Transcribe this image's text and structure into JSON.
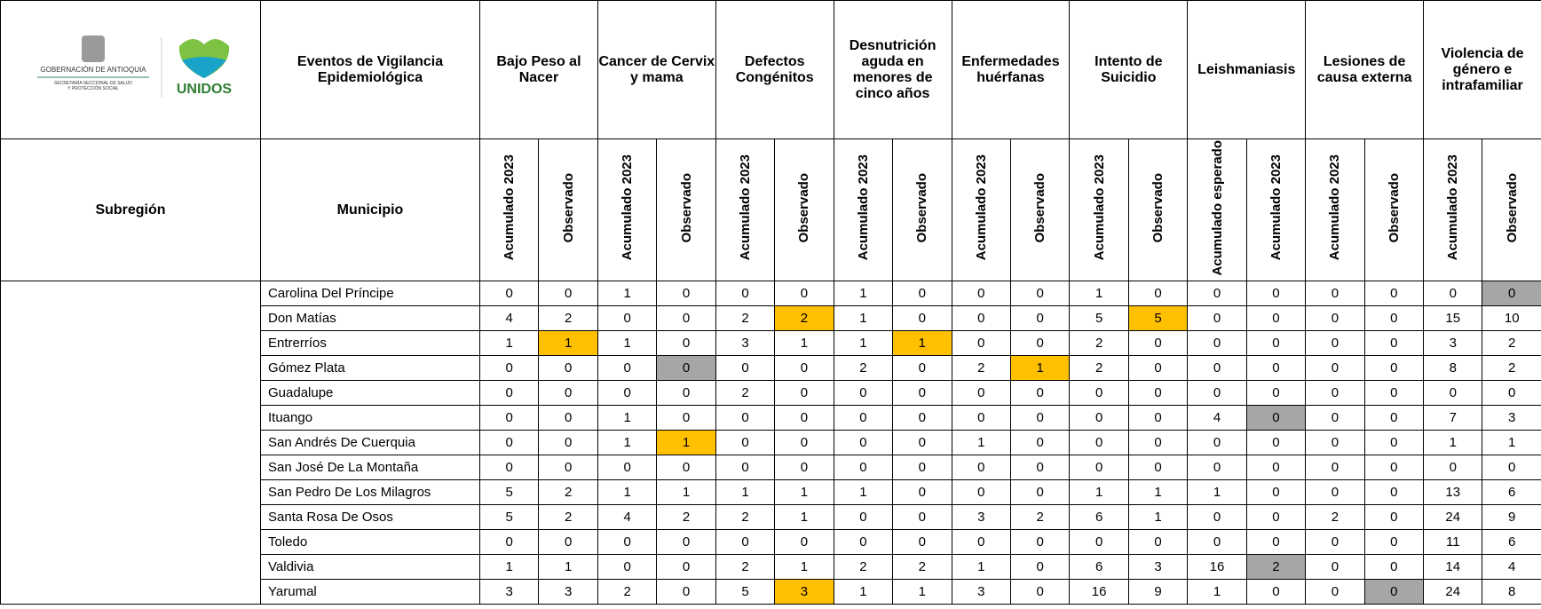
{
  "logo": {
    "line1": "GOBERNACIÓN DE ANTIOQUIA",
    "line2": "SECRETARÍA SECCIONAL DE SALUD",
    "line3": "Y PROTECCIÓN SOCIAL",
    "brand": "UNIDOS"
  },
  "header": {
    "title": "Eventos de Vigilancia Epidemiológica",
    "subregion": "Subregión",
    "municipio": "Municipio"
  },
  "events": [
    {
      "name": "Bajo Peso al Nacer",
      "columns": [
        "Acumulado 2023",
        "Observado"
      ]
    },
    {
      "name": "Cancer de Cervix y mama",
      "columns": [
        "Acumulado 2023",
        "Observado"
      ]
    },
    {
      "name": "Defectos Congénitos",
      "columns": [
        "Acumulado 2023",
        "Observado"
      ]
    },
    {
      "name": "Desnutrición aguda en menores de cinco años",
      "columns": [
        "Acumulado 2023",
        "Observado"
      ]
    },
    {
      "name": "Enfermedades huérfanas",
      "columns": [
        "Acumulado 2023",
        "Observado"
      ]
    },
    {
      "name": "Intento de Suicidio",
      "columns": [
        "Acumulado 2023",
        "Observado"
      ]
    },
    {
      "name": "Leishmaniasis",
      "columns": [
        "Acumulado esperado",
        "Acumulado 2023"
      ]
    },
    {
      "name": "Lesiones de causa externa",
      "columns": [
        "Acumulado 2023",
        "Observado"
      ]
    },
    {
      "name": "Violencia de género e intrafamiliar",
      "columns": [
        "Acumulado 2023",
        "Observado"
      ]
    }
  ],
  "rows": [
    {
      "municipio": "Carolina Del Príncipe",
      "values": [
        0,
        0,
        1,
        0,
        0,
        0,
        1,
        0,
        0,
        0,
        1,
        0,
        0,
        0,
        0,
        0,
        0,
        0
      ]
    },
    {
      "municipio": "Don Matías",
      "values": [
        4,
        2,
        0,
        0,
        2,
        2,
        1,
        0,
        0,
        0,
        5,
        5,
        0,
        0,
        0,
        0,
        15,
        10
      ]
    },
    {
      "municipio": "Entrerríos",
      "values": [
        1,
        1,
        1,
        0,
        3,
        1,
        1,
        1,
        0,
        0,
        2,
        0,
        0,
        0,
        0,
        0,
        3,
        2
      ]
    },
    {
      "municipio": "Gómez Plata",
      "values": [
        0,
        0,
        0,
        0,
        0,
        0,
        2,
        0,
        2,
        1,
        2,
        0,
        0,
        0,
        0,
        0,
        8,
        2
      ]
    },
    {
      "municipio": "Guadalupe",
      "values": [
        0,
        0,
        0,
        0,
        2,
        0,
        0,
        0,
        0,
        0,
        0,
        0,
        0,
        0,
        0,
        0,
        0,
        0
      ]
    },
    {
      "municipio": "Ituango",
      "values": [
        0,
        0,
        1,
        0,
        0,
        0,
        0,
        0,
        0,
        0,
        0,
        0,
        4,
        0,
        0,
        0,
        7,
        3
      ]
    },
    {
      "municipio": "San Andrés De Cuerquia",
      "values": [
        0,
        0,
        1,
        1,
        0,
        0,
        0,
        0,
        1,
        0,
        0,
        0,
        0,
        0,
        0,
        0,
        1,
        1
      ]
    },
    {
      "municipio": "San José De La Montaña",
      "values": [
        0,
        0,
        0,
        0,
        0,
        0,
        0,
        0,
        0,
        0,
        0,
        0,
        0,
        0,
        0,
        0,
        0,
        0
      ]
    },
    {
      "municipio": "San Pedro De Los Milagros",
      "values": [
        5,
        2,
        1,
        1,
        1,
        1,
        1,
        0,
        0,
        0,
        1,
        1,
        1,
        0,
        0,
        0,
        13,
        6
      ]
    },
    {
      "municipio": "Santa Rosa De Osos",
      "values": [
        5,
        2,
        4,
        2,
        2,
        1,
        0,
        0,
        3,
        2,
        6,
        1,
        0,
        0,
        2,
        0,
        24,
        9
      ]
    },
    {
      "municipio": "Toledo",
      "values": [
        0,
        0,
        0,
        0,
        0,
        0,
        0,
        0,
        0,
        0,
        0,
        0,
        0,
        0,
        0,
        0,
        11,
        6
      ]
    },
    {
      "municipio": "Valdivia",
      "values": [
        1,
        1,
        0,
        0,
        2,
        1,
        2,
        2,
        1,
        0,
        6,
        3,
        16,
        2,
        0,
        0,
        14,
        4
      ]
    },
    {
      "municipio": "Yarumal",
      "values": [
        3,
        3,
        2,
        0,
        5,
        3,
        1,
        1,
        3,
        0,
        16,
        9,
        1,
        0,
        0,
        0,
        24,
        8
      ]
    }
  ],
  "highlights": [
    {
      "row": 0,
      "col": 17,
      "color": "#a6a6a6"
    },
    {
      "row": 1,
      "col": 5,
      "color": "#ffc000"
    },
    {
      "row": 1,
      "col": 11,
      "color": "#ffc000"
    },
    {
      "row": 2,
      "col": 1,
      "color": "#ffc000"
    },
    {
      "row": 2,
      "col": 7,
      "color": "#ffc000"
    },
    {
      "row": 3,
      "col": 3,
      "color": "#a6a6a6"
    },
    {
      "row": 3,
      "col": 9,
      "color": "#ffc000"
    },
    {
      "row": 5,
      "col": 13,
      "color": "#a6a6a6"
    },
    {
      "row": 6,
      "col": 3,
      "color": "#ffc000"
    },
    {
      "row": 11,
      "col": 13,
      "color": "#a6a6a6"
    },
    {
      "row": 12,
      "col": 5,
      "color": "#ffc000"
    },
    {
      "row": 12,
      "col": 15,
      "color": "#a6a6a6"
    }
  ]
}
